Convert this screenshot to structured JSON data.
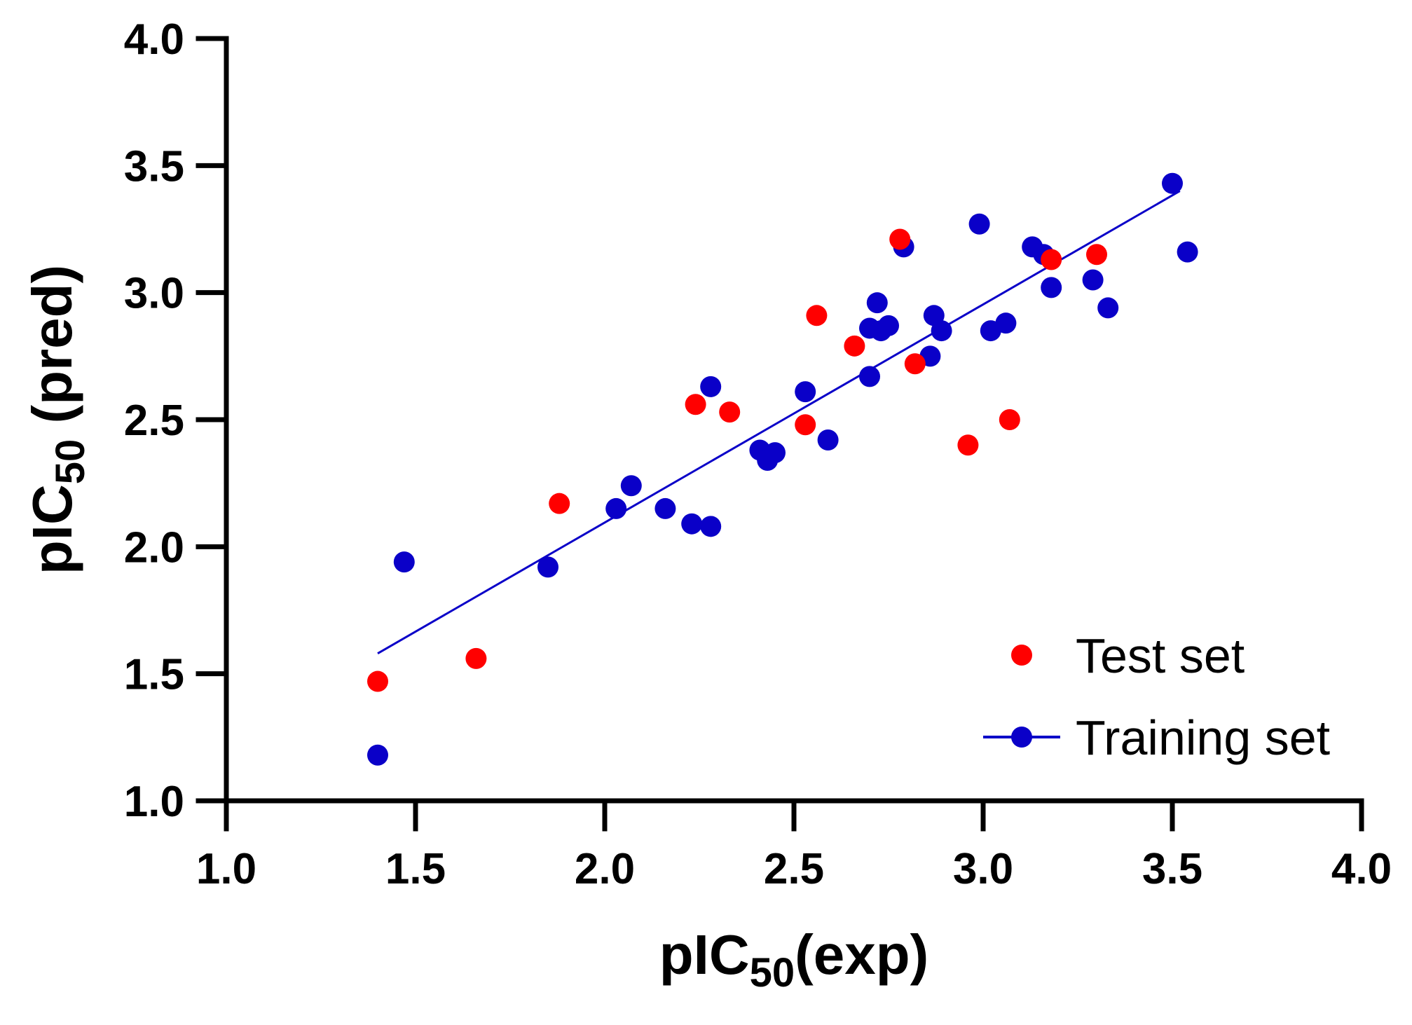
{
  "chart_data": {
    "type": "scatter",
    "title": "",
    "xlabel": {
      "main": "pIC",
      "sub": "50",
      "suffix": "(exp)"
    },
    "ylabel": {
      "main": "pIC",
      "sub": "50",
      "suffix": " (pred)"
    },
    "xlim": [
      1.0,
      4.0
    ],
    "ylim": [
      1.0,
      4.0
    ],
    "xticks": [
      1.0,
      1.5,
      2.0,
      2.5,
      3.0,
      3.5,
      4.0
    ],
    "yticks": [
      1.0,
      1.5,
      2.0,
      2.5,
      3.0,
      3.5,
      4.0
    ],
    "xtick_labels": [
      "1.0",
      "1.5",
      "2.0",
      "2.5",
      "3.0",
      "3.5",
      "4.0"
    ],
    "ytick_labels": [
      "1.0",
      "1.5",
      "2.0",
      "2.5",
      "3.0",
      "3.5",
      "4.0"
    ],
    "grid": false,
    "legend_position": "bottom-right",
    "series": [
      {
        "name": "Training set",
        "color": "#0a00c8",
        "marker": "circle",
        "points": [
          [
            1.4,
            1.18
          ],
          [
            1.47,
            1.94
          ],
          [
            1.85,
            1.92
          ],
          [
            2.03,
            2.15
          ],
          [
            2.07,
            2.24
          ],
          [
            2.16,
            2.15
          ],
          [
            2.23,
            2.09
          ],
          [
            2.28,
            2.08
          ],
          [
            2.28,
            2.63
          ],
          [
            2.41,
            2.38
          ],
          [
            2.43,
            2.34
          ],
          [
            2.45,
            2.37
          ],
          [
            2.53,
            2.61
          ],
          [
            2.59,
            2.42
          ],
          [
            2.7,
            2.67
          ],
          [
            2.7,
            2.86
          ],
          [
            2.72,
            2.96
          ],
          [
            2.73,
            2.85
          ],
          [
            2.75,
            2.87
          ],
          [
            2.79,
            3.18
          ],
          [
            2.86,
            2.75
          ],
          [
            2.87,
            2.91
          ],
          [
            2.89,
            2.85
          ],
          [
            2.99,
            3.27
          ],
          [
            3.02,
            2.85
          ],
          [
            3.06,
            2.88
          ],
          [
            3.13,
            3.18
          ],
          [
            3.16,
            3.15
          ],
          [
            3.18,
            3.02
          ],
          [
            3.29,
            3.05
          ],
          [
            3.33,
            2.94
          ],
          [
            3.5,
            3.43
          ],
          [
            3.54,
            3.16
          ]
        ]
      },
      {
        "name": "Test set",
        "color": "#ff0000",
        "marker": "circle",
        "points": [
          [
            1.4,
            1.47
          ],
          [
            1.66,
            1.56
          ],
          [
            1.88,
            2.17
          ],
          [
            2.24,
            2.56
          ],
          [
            2.33,
            2.53
          ],
          [
            2.53,
            2.48
          ],
          [
            2.56,
            2.91
          ],
          [
            2.66,
            2.79
          ],
          [
            2.78,
            3.21
          ],
          [
            2.82,
            2.72
          ],
          [
            2.96,
            2.4
          ],
          [
            3.07,
            2.5
          ],
          [
            3.18,
            3.13
          ],
          [
            3.3,
            3.15
          ]
        ]
      }
    ],
    "fit_line": {
      "name": "Training set",
      "color": "#0a00c8",
      "x": [
        1.4,
        3.52
      ],
      "y": [
        1.58,
        3.4
      ]
    },
    "legend": [
      {
        "label": "Test set",
        "color": "#ff0000",
        "line": false
      },
      {
        "label": "Training set",
        "color": "#0a00c8",
        "line": true
      }
    ]
  }
}
